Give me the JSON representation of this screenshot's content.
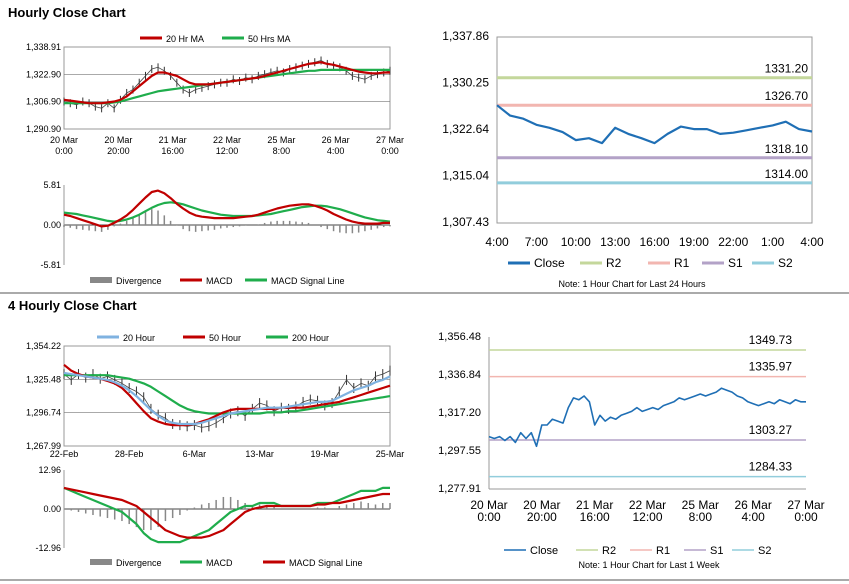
{
  "section1_title": "Hourly Close Chart",
  "section2_title": "4 Hourly Close Chart",
  "colors": {
    "red": "#c00000",
    "green": "#1fad4c",
    "blue": "#1f6fb5",
    "lightblue": "#7fb2e0",
    "r2": "#c4d79b",
    "r1": "#f2b6b0",
    "s1": "#b3a2c7",
    "s2": "#92cddc",
    "bar": "#888888"
  },
  "chart_data": [
    {
      "id": "hourly_price",
      "type": "line",
      "legend": [
        "20 Hr MA",
        "50 Hrs MA"
      ],
      "y_ticks": [
        "1,338.91",
        "1,322.90",
        "1,306.90",
        "1,290.90"
      ],
      "ylim": [
        1290.9,
        1338.91
      ],
      "x_ticks": [
        "20 Mar|0:00",
        "20 Mar|20:00",
        "21 Mar|16:00",
        "22 Mar|12:00",
        "25 Mar|8:00",
        "26 Mar|4:00",
        "27 Mar|0:00"
      ],
      "series": [
        {
          "name": "Close",
          "values": [
            1307,
            1306,
            1305,
            1307,
            1306,
            1304,
            1303,
            1306,
            1303,
            1308,
            1312,
            1314,
            1318,
            1322,
            1326,
            1327,
            1325,
            1322,
            1318,
            1314,
            1312,
            1314,
            1315,
            1316,
            1317,
            1318,
            1318,
            1320,
            1319,
            1321,
            1320,
            1322,
            1323,
            1324,
            1325,
            1324,
            1326,
            1327,
            1328,
            1329,
            1330,
            1331,
            1329,
            1328,
            1327,
            1325,
            1322,
            1321,
            1320,
            1322,
            1323,
            1324,
            1325
          ]
        },
        {
          "name": "20 Hr MA",
          "values": [
            1308,
            1307.5,
            1307,
            1306.5,
            1306,
            1306,
            1306,
            1306.5,
            1307,
            1308,
            1310,
            1313,
            1316,
            1319,
            1322,
            1324,
            1324,
            1323,
            1322,
            1320,
            1318,
            1317,
            1317,
            1317,
            1317.5,
            1318,
            1318.5,
            1319,
            1319.5,
            1320,
            1320.5,
            1321,
            1322,
            1323,
            1324,
            1325,
            1326,
            1327,
            1328,
            1329,
            1329.5,
            1330,
            1329,
            1328.5,
            1327.5,
            1326.5,
            1325.5,
            1324.5,
            1324,
            1323.5,
            1323.5,
            1324,
            1324
          ]
        },
        {
          "name": "50 Hrs MA",
          "values": [
            1306,
            1306,
            1306,
            1306,
            1306,
            1306,
            1306,
            1306,
            1306.5,
            1307,
            1308,
            1309,
            1310,
            1311,
            1312,
            1313,
            1313.5,
            1314,
            1314.5,
            1315,
            1315.5,
            1316,
            1316.5,
            1317,
            1317.5,
            1318,
            1318.5,
            1319,
            1319.5,
            1320,
            1320.5,
            1321,
            1321.5,
            1322,
            1322.5,
            1323,
            1323.5,
            1324,
            1324.5,
            1325,
            1325,
            1325.5,
            1325.5,
            1325.5,
            1325.5,
            1325.5,
            1325.5,
            1325.5,
            1325.5,
            1325.5,
            1325.5,
            1325.5,
            1325.5
          ]
        }
      ]
    },
    {
      "id": "hourly_macd",
      "type": "line",
      "y_ticks": [
        "5.81",
        "0.00",
        "-5.81"
      ],
      "ylim": [
        -5.81,
        5.81
      ],
      "legend": [
        "Divergence",
        "MACD",
        "MACD Signal Line"
      ],
      "series": [
        {
          "name": "MACD",
          "values": [
            1.5,
            1.3,
            1.0,
            0.7,
            0.4,
            0.1,
            -0.2,
            -0.1,
            0.3,
            0.8,
            1.4,
            2.2,
            3.1,
            4.0,
            4.8,
            5.0,
            4.6,
            3.9,
            3.1,
            2.4,
            1.8,
            1.4,
            1.2,
            1.1,
            1.0,
            1.0,
            1.0,
            1.0,
            1.1,
            1.2,
            1.3,
            1.5,
            1.8,
            2.1,
            2.4,
            2.6,
            2.8,
            2.9,
            3.0,
            3.0,
            2.8,
            2.5,
            2.1,
            1.6,
            1.2,
            0.8,
            0.5,
            0.3,
            0.2,
            0.2,
            0.2,
            0.3,
            0.3
          ]
        },
        {
          "name": "MACD Signal Line",
          "values": [
            1.8,
            1.7,
            1.6,
            1.4,
            1.2,
            1.0,
            0.8,
            0.6,
            0.5,
            0.6,
            0.8,
            1.1,
            1.5,
            2.0,
            2.5,
            2.9,
            3.2,
            3.3,
            3.2,
            3.0,
            2.7,
            2.4,
            2.1,
            1.9,
            1.7,
            1.5,
            1.4,
            1.3,
            1.3,
            1.3,
            1.3,
            1.4,
            1.5,
            1.6,
            1.8,
            2.0,
            2.2,
            2.4,
            2.6,
            2.7,
            2.8,
            2.8,
            2.7,
            2.5,
            2.3,
            2.0,
            1.7,
            1.4,
            1.1,
            0.9,
            0.7,
            0.6,
            0.5
          ]
        }
      ]
    },
    {
      "id": "hourly_levels",
      "type": "line",
      "y_ticks": [
        "1,337.86",
        "1,330.25",
        "1,322.64",
        "1,315.04",
        "1,307.43"
      ],
      "ylim": [
        1307.43,
        1337.86
      ],
      "x_ticks": [
        "4:00",
        "7:00",
        "10:00",
        "13:00",
        "16:00",
        "19:00",
        "22:00",
        "1:00",
        "4:00"
      ],
      "levels": [
        {
          "name": "R2",
          "value": 1331.2,
          "label": "1331.20"
        },
        {
          "name": "R1",
          "value": 1326.7,
          "label": "1326.70"
        },
        {
          "name": "S1",
          "value": 1318.1,
          "label": "1318.10"
        },
        {
          "name": "S2",
          "value": 1314.0,
          "label": "1314.00"
        }
      ],
      "series": [
        {
          "name": "Close",
          "values": [
            1326.7,
            1325.0,
            1324.5,
            1323.5,
            1323.0,
            1322.3,
            1321.0,
            1321.3,
            1320.5,
            1323.0,
            1322.0,
            1321.3,
            1320.5,
            1322.0,
            1323.2,
            1322.8,
            1322.8,
            1322.0,
            1322.2,
            1322.6,
            1323.0,
            1323.4,
            1324.0,
            1322.8,
            1322.4
          ]
        }
      ],
      "legend": [
        "Close",
        "R2",
        "R1",
        "S1",
        "S2"
      ],
      "note": "Note: 1 Hour Chart for Last 24 Hours"
    },
    {
      "id": "four_hourly_price",
      "type": "line",
      "legend": [
        "20 Hour",
        "50 Hour",
        "200 Hour"
      ],
      "y_ticks": [
        "1,354.22",
        "1,325.48",
        "1,296.74",
        "1,267.99"
      ],
      "ylim": [
        1267.99,
        1354.22
      ],
      "x_ticks": [
        "22-Feb",
        "28-Feb",
        "6-Mar",
        "13-Mar",
        "19-Mar",
        "25-Mar"
      ],
      "series": [
        {
          "name": "Close",
          "values": [
            1330,
            1325,
            1330,
            1327,
            1330,
            1326,
            1328,
            1325,
            1322,
            1318,
            1315,
            1310,
            1300,
            1295,
            1292,
            1287,
            1286,
            1285,
            1286,
            1284,
            1285,
            1288,
            1292,
            1296,
            1298,
            1294,
            1300,
            1305,
            1303,
            1298,
            1301,
            1300,
            1302,
            1306,
            1308,
            1307,
            1303,
            1305,
            1315,
            1325,
            1318,
            1322,
            1320,
            1328,
            1330,
            1333
          ]
        },
        {
          "name": "20 Hour",
          "values": [
            1331,
            1330,
            1329,
            1328,
            1327,
            1326,
            1325,
            1323,
            1320,
            1316,
            1311,
            1305,
            1299,
            1294,
            1290,
            1288,
            1287,
            1287,
            1287,
            1288,
            1290,
            1292,
            1294,
            1296,
            1297,
            1298,
            1299,
            1300,
            1301,
            1301,
            1301,
            1302,
            1303,
            1304,
            1305,
            1306,
            1306,
            1307,
            1310,
            1313,
            1316,
            1318,
            1320,
            1323,
            1325,
            1328
          ]
        },
        {
          "name": "50 Hour",
          "values": [
            1338,
            1333,
            1330,
            1328,
            1327,
            1326,
            1324,
            1322,
            1318,
            1312,
            1305,
            1298,
            1292,
            1289,
            1287,
            1286,
            1286,
            1286,
            1287,
            1289,
            1291,
            1294,
            1297,
            1299,
            1300,
            1300,
            1300,
            1300,
            1300,
            1300,
            1301,
            1301,
            1301,
            1301,
            1302,
            1303,
            1304,
            1305,
            1306,
            1308,
            1310,
            1312,
            1314,
            1316,
            1318,
            1320
          ]
        },
        {
          "name": "200 Hour",
          "values": [
            1329,
            1329,
            1329,
            1329,
            1329,
            1329,
            1329,
            1328,
            1327,
            1326,
            1324,
            1322,
            1319,
            1315,
            1311,
            1307,
            1303,
            1300,
            1298,
            1297,
            1296,
            1296,
            1296,
            1296,
            1296,
            1296,
            1296,
            1296,
            1297,
            1297,
            1297,
            1298,
            1298,
            1299,
            1300,
            1301,
            1302,
            1303,
            1304,
            1305,
            1306,
            1307,
            1308,
            1309,
            1310,
            1311
          ]
        }
      ]
    },
    {
      "id": "four_hourly_macd",
      "type": "line",
      "y_ticks": [
        "12.96",
        "0.00",
        "-12.96"
      ],
      "ylim": [
        -12.96,
        12.96
      ],
      "legend": [
        "Divergence",
        "MACD",
        "MACD Signal Line"
      ],
      "series": [
        {
          "name": "MACD",
          "values": [
            7,
            6,
            5,
            4,
            3,
            2,
            1,
            0,
            -1,
            -3,
            -5,
            -8,
            -10,
            -11,
            -11,
            -11,
            -11,
            -10,
            -9,
            -8,
            -7,
            -5,
            -3,
            -1,
            0,
            1,
            1,
            2,
            2,
            2,
            1,
            1,
            1,
            1,
            1,
            2,
            2,
            2,
            3,
            4,
            5,
            6,
            6,
            6,
            7,
            7
          ]
        },
        {
          "name": "MACD Signal Line",
          "values": [
            7,
            6.5,
            6,
            5.5,
            5,
            4.5,
            4,
            3.5,
            3,
            2,
            1,
            -1,
            -3,
            -5,
            -7,
            -8,
            -9,
            -9.5,
            -9.5,
            -9.5,
            -9,
            -8,
            -7,
            -5,
            -3,
            -1,
            0,
            0.5,
            1,
            1,
            1,
            1,
            1,
            1,
            1,
            1.5,
            1.5,
            2,
            2,
            2.5,
            3,
            3.5,
            4,
            4.5,
            5,
            5
          ]
        }
      ]
    },
    {
      "id": "four_hourly_levels",
      "type": "line",
      "y_ticks": [
        "1,356.48",
        "1,336.84",
        "1,317.20",
        "1,297.55",
        "1,277.91"
      ],
      "ylim": [
        1277.91,
        1356.48
      ],
      "x_ticks": [
        "20 Mar|0:00",
        "20 Mar|20:00",
        "21 Mar|16:00",
        "22 Mar|12:00",
        "25 Mar|8:00",
        "26 Mar|4:00",
        "27 Mar|0:00"
      ],
      "levels": [
        {
          "name": "R2",
          "value": 1349.73,
          "label": "1349.73"
        },
        {
          "name": "R1",
          "value": 1335.97,
          "label": "1335.97"
        },
        {
          "name": "S1",
          "value": 1303.27,
          "label": "1303.27"
        },
        {
          "name": "S2",
          "value": 1284.33,
          "label": "1284.33"
        }
      ],
      "series": [
        {
          "name": "Close",
          "values": [
            1305,
            1304,
            1305,
            1303,
            1305,
            1302,
            1307,
            1304,
            1307,
            1300,
            1311,
            1311,
            1314,
            1313,
            1312,
            1320,
            1325,
            1324,
            1326,
            1323,
            1311,
            1316,
            1313,
            1315,
            1314,
            1316,
            1317,
            1318,
            1320,
            1318,
            1319,
            1320,
            1319,
            1321,
            1322,
            1323,
            1325,
            1324,
            1325,
            1326,
            1327,
            1326,
            1327,
            1328,
            1330,
            1329,
            1328,
            1326,
            1325,
            1323,
            1322,
            1321,
            1322,
            1323,
            1322,
            1324,
            1323,
            1322,
            1324,
            1323,
            1323
          ]
        }
      ],
      "legend": [
        "Close",
        "R2",
        "R1",
        "S1",
        "S2"
      ],
      "note": "Note: 1 Hour Chart for Last 1 Week"
    }
  ]
}
